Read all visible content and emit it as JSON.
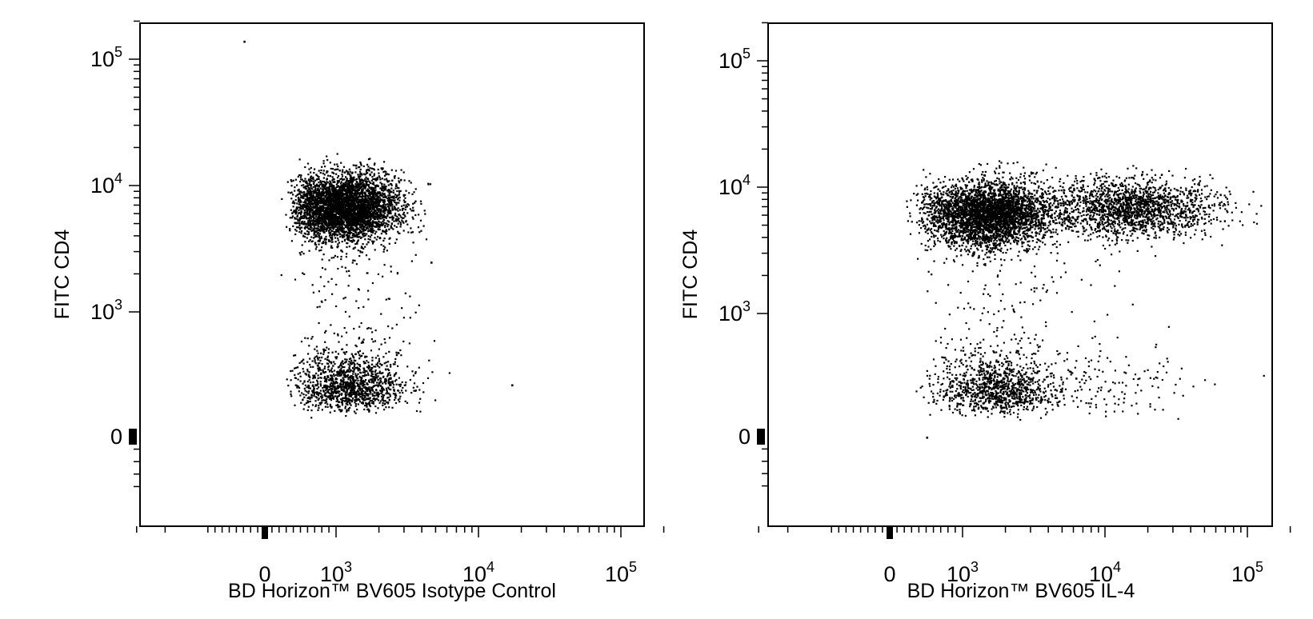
{
  "chart_data": [
    {
      "type": "scatter",
      "xlabel": "BD Horizon™ BV605 Isotype Control",
      "ylabel": "FITC CD4",
      "x_scale": "biexponential",
      "y_scale": "biexponential",
      "xlim": [
        -900,
        200000
      ],
      "ylim": [
        -500,
        220000
      ],
      "x_ticks": [
        {
          "value": 0,
          "base": "0",
          "exp": ""
        },
        {
          "value": 1000,
          "base": "10",
          "exp": "3"
        },
        {
          "value": 10000,
          "base": "10",
          "exp": "4"
        },
        {
          "value": 100000,
          "base": "10",
          "exp": "5"
        }
      ],
      "y_ticks": [
        {
          "value": 0,
          "base": "0",
          "exp": ""
        },
        {
          "value": 1000,
          "base": "10",
          "exp": "3"
        },
        {
          "value": 10000,
          "base": "10",
          "exp": "4"
        },
        {
          "value": 100000,
          "base": "10",
          "exp": "5"
        }
      ],
      "grid": false,
      "legend": "none",
      "point_color": "#000000",
      "populations": [
        {
          "center_x": 1150,
          "center_y": 6800,
          "spread_x_decades": 0.19,
          "spread_y_decades": 0.13,
          "points": 4200
        },
        {
          "center_x": 1250,
          "center_y": 420,
          "spread_x_decades": 0.2,
          "spread_y_decades": 0.13,
          "points": 1300
        },
        {
          "center_x": 1200,
          "center_y": 1800,
          "spread_x_decades": 0.25,
          "spread_y_decades": 0.25,
          "points": 90
        }
      ],
      "outliers": [
        [
          -300,
          140000
        ],
        [
          17000,
          420
        ],
        [
          4600,
          2500
        ]
      ]
    },
    {
      "type": "scatter",
      "xlabel": "BD Horizon™ BV605 IL-4",
      "ylabel": "FITC CD4",
      "x_scale": "biexponential",
      "y_scale": "biexponential",
      "xlim": [
        -900,
        200000
      ],
      "ylim": [
        -500,
        220000
      ],
      "x_ticks": [
        {
          "value": 0,
          "base": "0",
          "exp": ""
        },
        {
          "value": 1000,
          "base": "10",
          "exp": "3"
        },
        {
          "value": 10000,
          "base": "10",
          "exp": "4"
        },
        {
          "value": 100000,
          "base": "10",
          "exp": "5"
        }
      ],
      "y_ticks": [
        {
          "value": 0,
          "base": "0",
          "exp": ""
        },
        {
          "value": 1000,
          "base": "10",
          "exp": "3"
        },
        {
          "value": 10000,
          "base": "10",
          "exp": "4"
        },
        {
          "value": 100000,
          "base": "10",
          "exp": "5"
        }
      ],
      "grid": false,
      "legend": "none",
      "point_color": "#000000",
      "populations": [
        {
          "center_x": 1500,
          "center_y": 6200,
          "spread_x_decades": 0.22,
          "spread_y_decades": 0.13,
          "points": 3600
        },
        {
          "center_x": 15000,
          "center_y": 7000,
          "spread_x_decades": 0.3,
          "spread_y_decades": 0.12,
          "points": 1800
        },
        {
          "center_x": 1700,
          "center_y": 400,
          "spread_x_decades": 0.2,
          "spread_y_decades": 0.14,
          "points": 1100
        },
        {
          "center_x": 9000,
          "center_y": 450,
          "spread_x_decades": 0.35,
          "spread_y_decades": 0.17,
          "points": 160
        },
        {
          "center_x": 2000,
          "center_y": 1500,
          "spread_x_decades": 0.3,
          "spread_y_decades": 0.3,
          "points": 110
        }
      ],
      "outliers": [
        [
          170000,
          300
        ],
        [
          500,
          0
        ]
      ]
    }
  ]
}
